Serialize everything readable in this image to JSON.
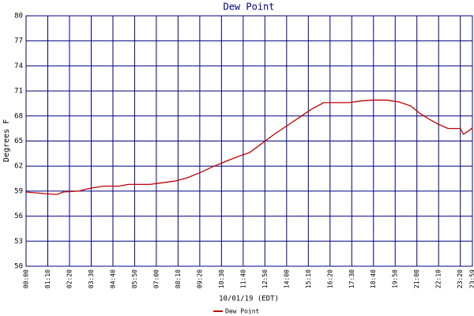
{
  "chart_data": {
    "type": "line",
    "title": "Dew Point",
    "x_label": "10/01/19 (EDT)",
    "y_label": "Degrees F",
    "xlim": [
      0,
      1439
    ],
    "ylim": [
      50,
      80
    ],
    "yticks": [
      50,
      53,
      56,
      59,
      62,
      65,
      68,
      71,
      74,
      77,
      80
    ],
    "xticks": [
      {
        "value": 0,
        "label": "00:00"
      },
      {
        "value": 70,
        "label": "01:10"
      },
      {
        "value": 140,
        "label": "02:20"
      },
      {
        "value": 210,
        "label": "03:30"
      },
      {
        "value": 280,
        "label": "04:40"
      },
      {
        "value": 350,
        "label": "05:50"
      },
      {
        "value": 420,
        "label": "07:00"
      },
      {
        "value": 490,
        "label": "08:10"
      },
      {
        "value": 560,
        "label": "09:20"
      },
      {
        "value": 630,
        "label": "10:30"
      },
      {
        "value": 700,
        "label": "11:40"
      },
      {
        "value": 770,
        "label": "12:50"
      },
      {
        "value": 840,
        "label": "14:00"
      },
      {
        "value": 910,
        "label": "15:10"
      },
      {
        "value": 980,
        "label": "16:20"
      },
      {
        "value": 1050,
        "label": "17:30"
      },
      {
        "value": 1120,
        "label": "18:40"
      },
      {
        "value": 1190,
        "label": "19:50"
      },
      {
        "value": 1260,
        "label": "21:00"
      },
      {
        "value": 1330,
        "label": "22:10"
      },
      {
        "value": 1400,
        "label": "23:20"
      },
      {
        "value": 1439,
        "label": "23:59"
      }
    ],
    "grid": true,
    "legend": "bottom",
    "x": [
      0,
      60,
      100,
      120,
      170,
      200,
      250,
      300,
      330,
      400,
      440,
      480,
      520,
      560,
      600,
      640,
      680,
      720,
      760,
      800,
      840,
      880,
      920,
      960,
      1000,
      1040,
      1080,
      1120,
      1160,
      1200,
      1240,
      1270,
      1300,
      1330,
      1360,
      1400,
      1410,
      1430,
      1439
    ],
    "series": [
      {
        "name": "Dew Point",
        "color": "#c00000",
        "values": [
          58.9,
          58.7,
          58.6,
          58.9,
          59.0,
          59.3,
          59.6,
          59.6,
          59.8,
          59.8,
          60.0,
          60.2,
          60.6,
          61.2,
          61.9,
          62.5,
          63.1,
          63.6,
          64.7,
          65.8,
          66.8,
          67.8,
          68.8,
          69.6,
          69.6,
          69.6,
          69.8,
          69.9,
          69.9,
          69.7,
          69.2,
          68.3,
          67.6,
          67.0,
          66.5,
          66.5,
          65.8,
          66.3,
          66.6
        ]
      }
    ]
  }
}
